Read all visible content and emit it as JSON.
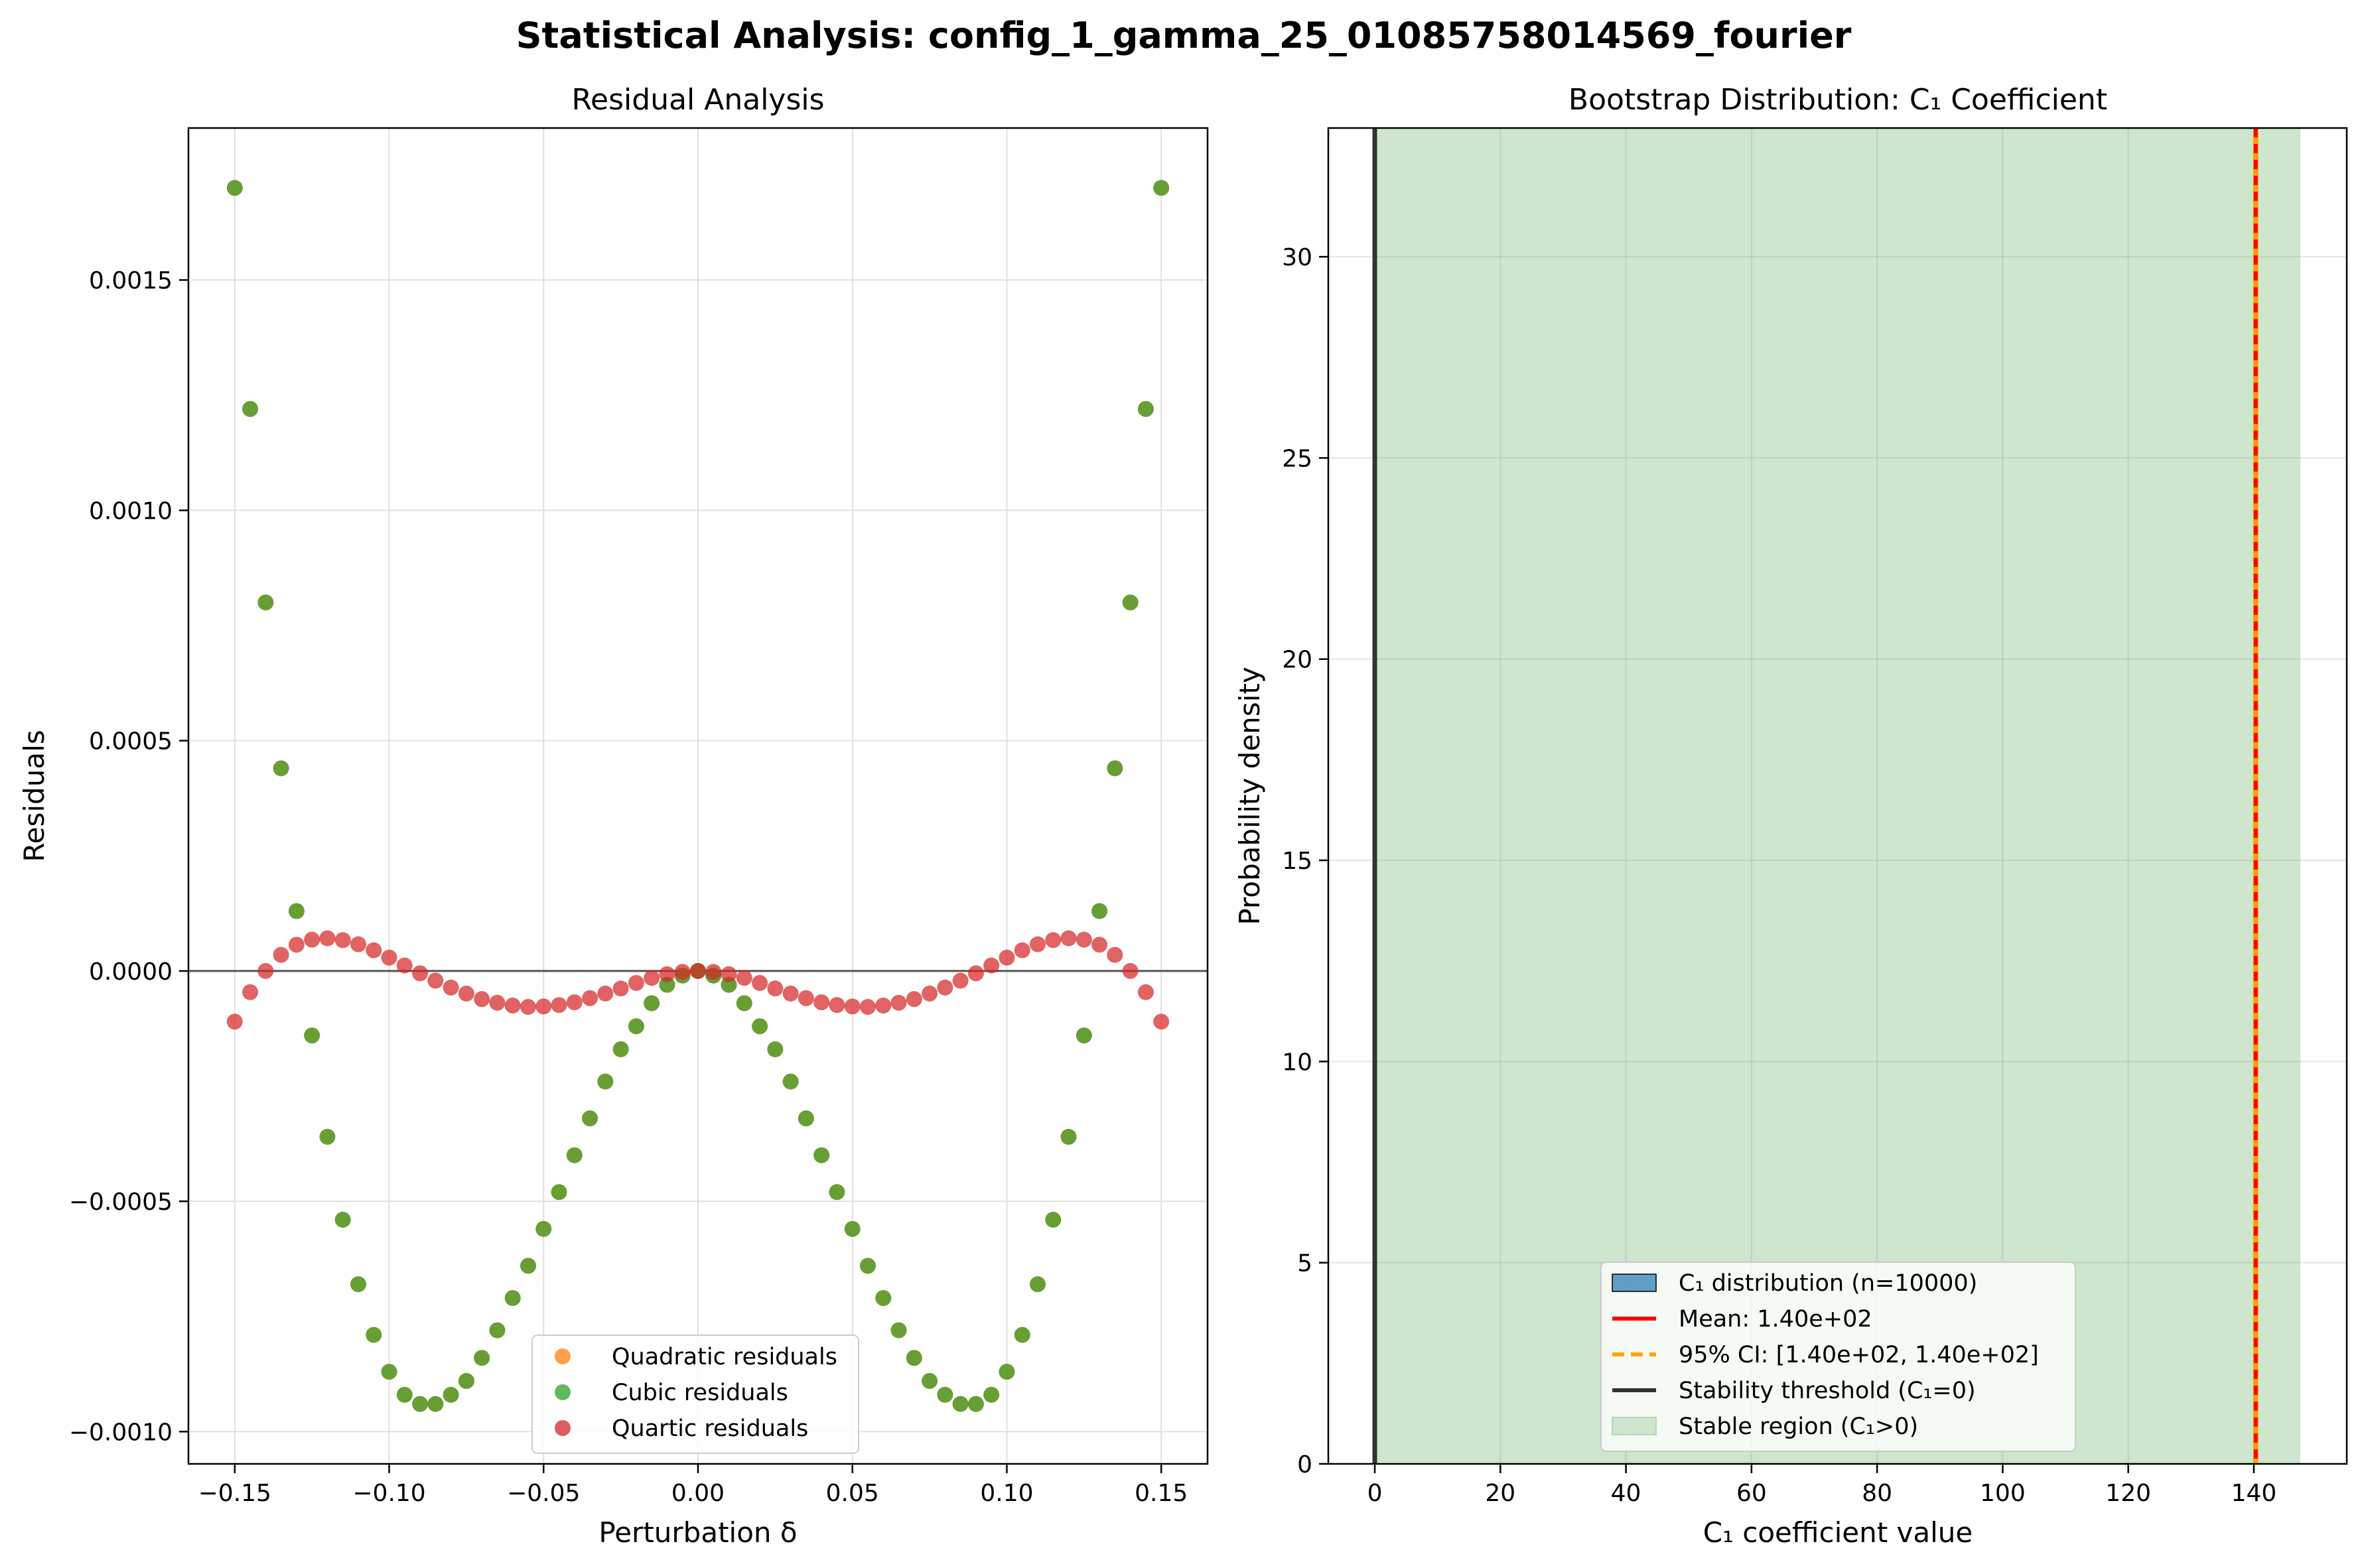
{
  "suptitle": "Statistical Analysis: config_1_gamma_25_01085758014569_fourier",
  "colors": {
    "quadratic": "#ff7f0e",
    "cubic": "#2ca02c",
    "quartic": "#d62728",
    "overlap_green": "#5a9a2a",
    "hist": "#1f77b4",
    "mean": "#ff0000",
    "ci": "#ffa500",
    "threshold": "#333333",
    "stable_region": "#cde6cd",
    "grid": "#e0e0e0"
  },
  "chart_data": [
    {
      "type": "scatter",
      "title": "Residual Analysis",
      "xlabel": "Perturbation δ",
      "ylabel": "Residuals",
      "xlim": [
        -0.165,
        0.165
      ],
      "ylim": [
        -0.00107,
        0.00183
      ],
      "xticks": [
        -0.15,
        -0.1,
        -0.05,
        0.0,
        0.05,
        0.1,
        0.15
      ],
      "xtick_labels": [
        "−0.15",
        "−0.10",
        "−0.05",
        "0.00",
        "0.05",
        "0.10",
        "0.15"
      ],
      "yticks": [
        -0.001,
        -0.0005,
        0.0,
        0.0005,
        0.001,
        0.0015
      ],
      "ytick_labels": [
        "−0.0010",
        "−0.0005",
        "0.0000",
        "0.0005",
        "0.0010",
        "0.0015"
      ],
      "grid": true,
      "zero_line": true,
      "legend_position": "lower-center",
      "legend": [
        "Quadratic residuals",
        "Cubic residuals",
        "Quartic residuals"
      ],
      "x": [
        -0.15,
        -0.145,
        -0.14,
        -0.135,
        -0.13,
        -0.125,
        -0.12,
        -0.115,
        -0.11,
        -0.105,
        -0.1,
        -0.095,
        -0.09,
        -0.085,
        -0.08,
        -0.075,
        -0.07,
        -0.065,
        -0.06,
        -0.055,
        -0.05,
        -0.045,
        -0.04,
        -0.035,
        -0.03,
        -0.025,
        -0.02,
        -0.015,
        -0.01,
        -0.005,
        0.0,
        0.005,
        0.01,
        0.015,
        0.02,
        0.025,
        0.03,
        0.035,
        0.04,
        0.045,
        0.05,
        0.055,
        0.06,
        0.065,
        0.07,
        0.075,
        0.08,
        0.085,
        0.09,
        0.095,
        0.1,
        0.105,
        0.11,
        0.115,
        0.12,
        0.125,
        0.13,
        0.135,
        0.14,
        0.145,
        0.15
      ],
      "series": [
        {
          "name": "Quadratic residuals",
          "values": [
            0.0017,
            0.00122,
            0.0008,
            0.00044,
            0.00013,
            -0.00014,
            -0.00036,
            -0.00054,
            -0.00068,
            -0.00079,
            -0.00087,
            -0.00092,
            -0.00094,
            -0.00094,
            -0.00092,
            -0.00089,
            -0.00084,
            -0.00078,
            -0.00071,
            -0.00064,
            -0.00056,
            -0.00048,
            -0.0004,
            -0.00032,
            -0.00024,
            -0.00017,
            -0.00012,
            -7e-05,
            -3e-05,
            -1e-05,
            0.0,
            -1e-05,
            -3e-05,
            -7e-05,
            -0.00012,
            -0.00017,
            -0.00024,
            -0.00032,
            -0.0004,
            -0.00048,
            -0.00056,
            -0.00064,
            -0.00071,
            -0.00078,
            -0.00084,
            -0.00089,
            -0.00092,
            -0.00094,
            -0.00094,
            -0.00092,
            -0.00087,
            -0.00079,
            -0.00068,
            -0.00054,
            -0.00036,
            -0.00014,
            0.00013,
            0.00044,
            0.0008,
            0.00122,
            0.0017
          ]
        },
        {
          "name": "Cubic residuals",
          "values": [
            0.0017,
            0.00122,
            0.0008,
            0.00044,
            0.00013,
            -0.00014,
            -0.00036,
            -0.00054,
            -0.00068,
            -0.00079,
            -0.00087,
            -0.00092,
            -0.00094,
            -0.00094,
            -0.00092,
            -0.00089,
            -0.00084,
            -0.00078,
            -0.00071,
            -0.00064,
            -0.00056,
            -0.00048,
            -0.0004,
            -0.00032,
            -0.00024,
            -0.00017,
            -0.00012,
            -7e-05,
            -3e-05,
            -1e-05,
            0.0,
            -1e-05,
            -3e-05,
            -7e-05,
            -0.00012,
            -0.00017,
            -0.00024,
            -0.00032,
            -0.0004,
            -0.00048,
            -0.00056,
            -0.00064,
            -0.00071,
            -0.00078,
            -0.00084,
            -0.00089,
            -0.00092,
            -0.00094,
            -0.00094,
            -0.00092,
            -0.00087,
            -0.00079,
            -0.00068,
            -0.00054,
            -0.00036,
            -0.00014,
            0.00013,
            0.00044,
            0.0008,
            0.00122,
            0.0017
          ]
        },
        {
          "name": "Quartic residuals",
          "values": [
            -0.00011,
            -4.6e-05,
            0.0,
            3.5e-05,
            5.7e-05,
            6.8e-05,
            7.1e-05,
            6.7e-05,
            5.8e-05,
            4.5e-05,
            2.9e-05,
            1.2e-05,
            -5e-06,
            -2.1e-05,
            -3.6e-05,
            -4.9e-05,
            -6.1e-05,
            -6.9e-05,
            -7.5e-05,
            -7.8e-05,
            -7.7e-05,
            -7.4e-05,
            -6.8e-05,
            -5.9e-05,
            -4.9e-05,
            -3.8e-05,
            -2.6e-05,
            -1.5e-05,
            -7e-06,
            -2e-06,
            0.0,
            -2e-06,
            -7e-06,
            -1.5e-05,
            -2.6e-05,
            -3.8e-05,
            -4.9e-05,
            -5.9e-05,
            -6.8e-05,
            -7.4e-05,
            -7.7e-05,
            -7.8e-05,
            -7.5e-05,
            -6.9e-05,
            -6.1e-05,
            -4.9e-05,
            -3.6e-05,
            -2.1e-05,
            -5e-06,
            1.2e-05,
            2.9e-05,
            4.5e-05,
            5.8e-05,
            6.7e-05,
            7.1e-05,
            6.8e-05,
            5.7e-05,
            3.5e-05,
            0.0,
            -4.6e-05,
            -0.00011
          ]
        }
      ]
    },
    {
      "type": "bar",
      "title": "Bootstrap Distribution: C₁ Coefficient",
      "xlabel": "C₁ coefficient value",
      "ylabel": "Probability density",
      "xlim": [
        -7.4,
        154.8
      ],
      "ylim": [
        0,
        33.2
      ],
      "xticks": [
        0,
        20,
        40,
        60,
        80,
        100,
        120,
        140
      ],
      "xtick_labels": [
        "0",
        "20",
        "40",
        "60",
        "80",
        "100",
        "120",
        "140"
      ],
      "yticks": [
        0,
        5,
        10,
        15,
        20,
        25,
        30
      ],
      "ytick_labels": [
        "0",
        "5",
        "10",
        "15",
        "20",
        "25",
        "30"
      ],
      "grid": true,
      "legend_position": "lower-center",
      "stable_region": [
        0,
        147.4
      ],
      "mean": 140.3,
      "ci": [
        140.3,
        140.3
      ],
      "threshold": 0,
      "legend": [
        "C₁ distribution (n=10000)",
        "Mean: 1.40e+02",
        "95% CI: [1.40e+02, 1.40e+02]",
        "Stability threshold (C₁=0)",
        "Stable region (C₁>0)"
      ]
    }
  ]
}
